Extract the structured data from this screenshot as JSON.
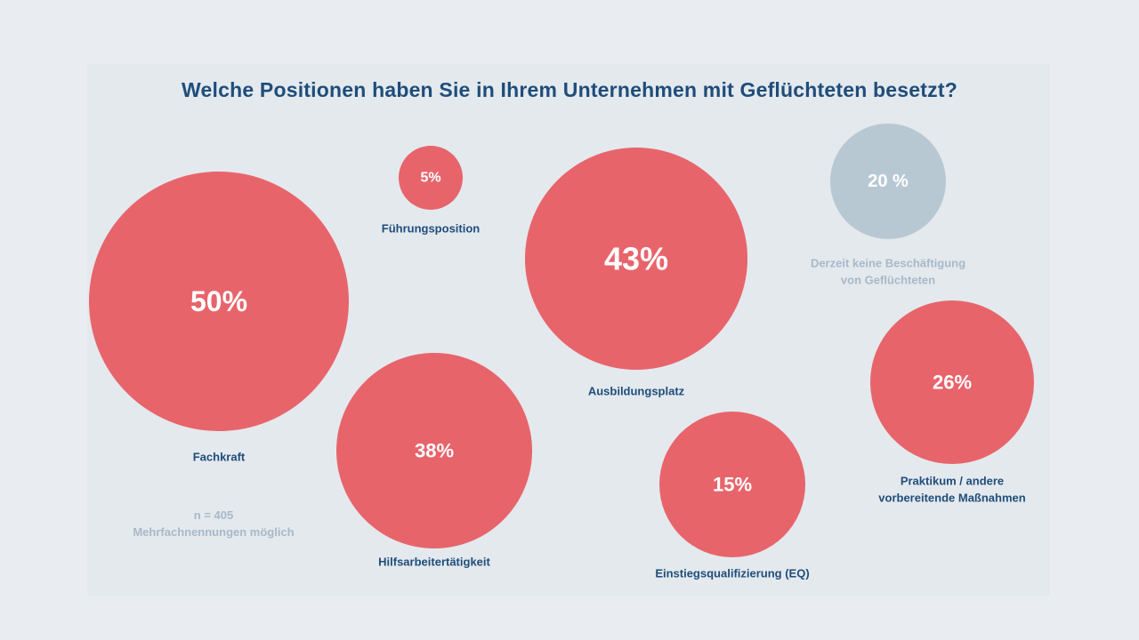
{
  "colors": {
    "bubble": "#e8646b",
    "bubble_muted": "#b7c8d3",
    "label": "#1f4d7a",
    "label_muted": "#a7b9c8",
    "value_text": "#ffffff"
  },
  "chart_data": {
    "type": "bubble",
    "title": "Welche Positionen haben Sie in Ihrem Unternehmen mit Geflüchteten besetzt?",
    "note": [
      "n = 405",
      "Mehrfachnennungen möglich"
    ],
    "items": [
      {
        "label": [
          "Fachkraft"
        ],
        "value": 50,
        "value_label": "50%",
        "muted": false
      },
      {
        "label": [
          "Führungsposition"
        ],
        "value": 5,
        "value_label": "5%",
        "muted": false
      },
      {
        "label": [
          "Ausbildungsplatz"
        ],
        "value": 43,
        "value_label": "43%",
        "muted": false
      },
      {
        "label": [
          "Derzeit keine Beschäftigung",
          "von Geflüchteten"
        ],
        "value": 20,
        "value_label": "20 %",
        "muted": true
      },
      {
        "label": [
          "Hilfsarbeitertätigkeit"
        ],
        "value": 38,
        "value_label": "38%",
        "muted": false
      },
      {
        "label": [
          "Einstiegsqualifizierung (EQ)"
        ],
        "value": 15,
        "value_label": "15%",
        "muted": false
      },
      {
        "label": [
          "Praktikum / andere",
          "vorbereitende Maßnahmen"
        ],
        "value": 26,
        "value_label": "26%",
        "muted": false
      }
    ]
  }
}
